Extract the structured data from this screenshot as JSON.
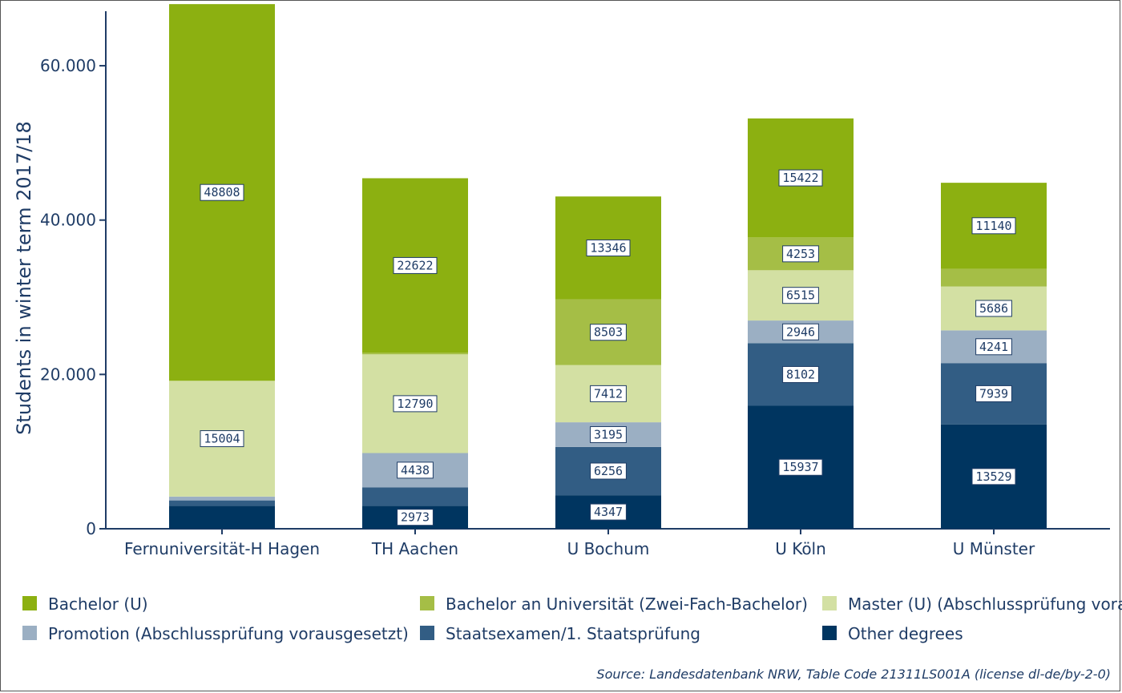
{
  "chart_data": {
    "type": "bar",
    "stacked": true,
    "categories": [
      "Fernuniversität-H Hagen",
      "TH Aachen",
      "U Bochum",
      "U Köln",
      "U Münster"
    ],
    "series": [
      {
        "name": "Other degrees",
        "color": "#003560",
        "values": [
          2973,
          2973,
          4347,
          15937,
          13529
        ],
        "labels": [
          "",
          "2973",
          "4347",
          "15937",
          "13529"
        ]
      },
      {
        "name": "Staatsexamen/1. Staatsprüfung",
        "color": "#325d84",
        "values": [
          700,
          2400,
          6256,
          8102,
          7939
        ],
        "labels": [
          "",
          "",
          "6256",
          "8102",
          "7939"
        ]
      },
      {
        "name": "Promotion (Abschlussprüfung vorausgesetzt)",
        "color": "#9bafc3",
        "values": [
          500,
          4438,
          3195,
          2946,
          4241
        ],
        "labels": [
          "",
          "4438",
          "3195",
          "2946",
          "4241"
        ]
      },
      {
        "name": "Master (U) (Abschlussprüfung vorausgesetzt)",
        "color": "#d3e0a3",
        "values": [
          15004,
          12790,
          7412,
          6515,
          5686
        ],
        "labels": [
          "15004",
          "12790",
          "7412",
          "6515",
          "5686"
        ]
      },
      {
        "name": "Bachelor an Universität (Zwei-Fach-Bachelor)",
        "color": "#a5be46",
        "values": [
          0,
          200,
          8503,
          4253,
          2300
        ],
        "labels": [
          "",
          "",
          "8503",
          "4253",
          ""
        ]
      },
      {
        "name": "Bachelor (U)",
        "color": "#8cb011",
        "values": [
          48808,
          22622,
          13346,
          15422,
          11140
        ],
        "labels": [
          "48808",
          "22622",
          "13346",
          "15422",
          "11140"
        ]
      }
    ],
    "legend": [
      {
        "name": "Bachelor (U)",
        "color": "#8cb011"
      },
      {
        "name": "Bachelor an Universität (Zwei-Fach-Bachelor)",
        "color": "#a5be46"
      },
      {
        "name": "Master (U) (Abschlussprüfung vorausgesetzt)",
        "color": "#d3e0a3"
      },
      {
        "name": "Promotion (Abschlussprüfung vorausgesetzt)",
        "color": "#9bafc3"
      },
      {
        "name": "Staatsexamen/1. Staatsprüfung",
        "color": "#325d84"
      },
      {
        "name": "Other degrees",
        "color": "#003560"
      }
    ],
    "legend_position": "bottom",
    "ylabel": "Students in winter term 2017/18",
    "xlabel": "",
    "ylim": [
      0,
      68000
    ],
    "yticks": [
      0,
      20000,
      40000,
      60000
    ],
    "ytick_labels": [
      "0",
      "20.000",
      "40.000",
      "60.000"
    ],
    "grid": false,
    "caption": "Source: Landesdatenbank NRW, Table Code 21311LS001A (license dl-de/by-2-0)"
  }
}
